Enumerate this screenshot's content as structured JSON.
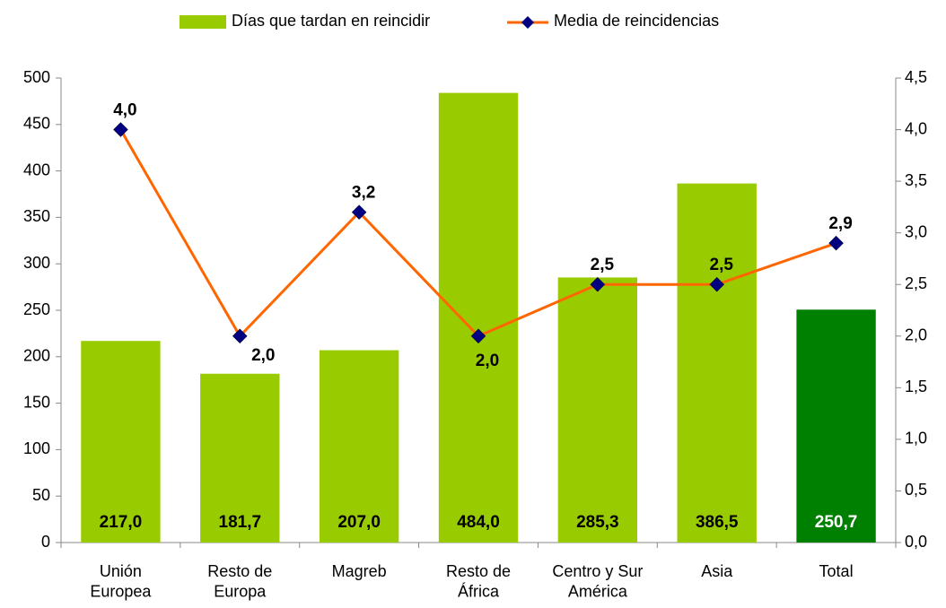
{
  "chart_data": {
    "type": "bar_line",
    "categories": [
      "Unión\nEuropea",
      "Resto de\nEuropa",
      "Magreb",
      "Resto de\nÁfrica",
      "Centro y Sur\nAmérica",
      "Asia",
      "Total"
    ],
    "series": [
      {
        "name": "Días que tardan en reincidir",
        "type": "bar",
        "color": "#99cc00",
        "colors": [
          "#99cc00",
          "#99cc00",
          "#99cc00",
          "#99cc00",
          "#99cc00",
          "#99cc00",
          "#008000"
        ],
        "values": [
          217.0,
          181.7,
          207.0,
          484.0,
          285.3,
          386.5,
          250.7
        ],
        "value_labels": [
          "217,0",
          "181,7",
          "207,0",
          "484,0",
          "285,3",
          "386,5",
          "250,7"
        ]
      },
      {
        "name": "Media de reincidencias",
        "type": "line",
        "axis": "y2",
        "color": "#ff6600",
        "marker_color": "#000080",
        "values": [
          4.0,
          2.0,
          3.2,
          2.0,
          2.5,
          2.5,
          2.9
        ],
        "value_labels": [
          "4,0",
          "2,0",
          "3,2",
          "2,0",
          "2,5",
          "2,5",
          "2,9"
        ]
      }
    ],
    "ylim": [
      0,
      500
    ],
    "yticks": [
      0,
      50,
      100,
      150,
      200,
      250,
      300,
      350,
      400,
      450,
      500
    ],
    "y2lim": [
      0,
      4.5
    ],
    "y2ticks": [
      {
        "value": 0,
        "label": "0,0"
      },
      {
        "value": 0.5,
        "label": "0,5"
      },
      {
        "value": 1,
        "label": "1,0"
      },
      {
        "value": 1.5,
        "label": "1,5"
      },
      {
        "value": 2,
        "label": "2,0"
      },
      {
        "value": 2.5,
        "label": "2,5"
      },
      {
        "value": 3,
        "label": "3,0"
      },
      {
        "value": 3.5,
        "label": "3,5"
      },
      {
        "value": 4,
        "label": "4,0"
      },
      {
        "value": 4.5,
        "label": "4,5"
      }
    ],
    "legend": "top",
    "grid": false
  }
}
